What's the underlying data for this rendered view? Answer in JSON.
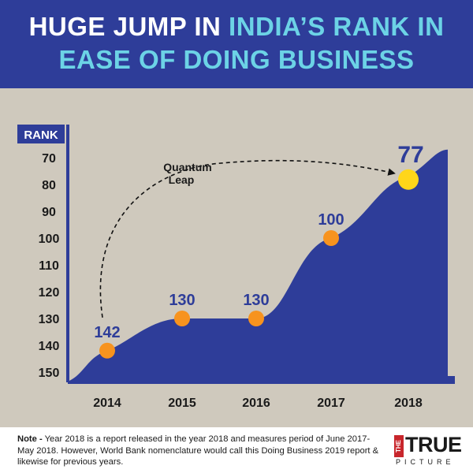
{
  "header": {
    "title_part1": "HUGE JUMP IN",
    "title_part2": "INDIA’S RANK IN",
    "title_part3": "EASE OF DOING BUSINESS"
  },
  "chart_data": {
    "type": "area",
    "title": "HUGE JUMP IN INDIA’S RANK IN EASE OF DOING BUSINESS",
    "ylabel": "RANK",
    "xlabel": "",
    "categories": [
      "2014",
      "2015",
      "2016",
      "2017",
      "2018"
    ],
    "values": [
      142,
      130,
      130,
      100,
      77
    ],
    "data_labels": [
      "142",
      "130",
      "130",
      "100",
      "77"
    ],
    "yticks": [
      70,
      80,
      90,
      100,
      110,
      120,
      130,
      140,
      150
    ],
    "ylim": [
      150,
      65
    ],
    "y_inverted": true,
    "annotation": {
      "text_line1": "Quantum",
      "text_line2": "Leap",
      "from": "2014",
      "to": "2018"
    },
    "colors": {
      "area": "#2e3d99",
      "point": "#f7931e",
      "highlight_point": "#ffd61a",
      "label": "#2e3d99",
      "axis": "#2e3d99"
    }
  },
  "footer": {
    "note_label": "Note -",
    "note_text": " Year 2018 is a report released in the year 2018 and measures period of June 2017- May 2018. However, World Bank nomenclature would call this Doing Business 2019 report & likewise for previous years.",
    "logo_the": "THE",
    "logo_true": "TRUE",
    "logo_picture": "PICTURE"
  }
}
